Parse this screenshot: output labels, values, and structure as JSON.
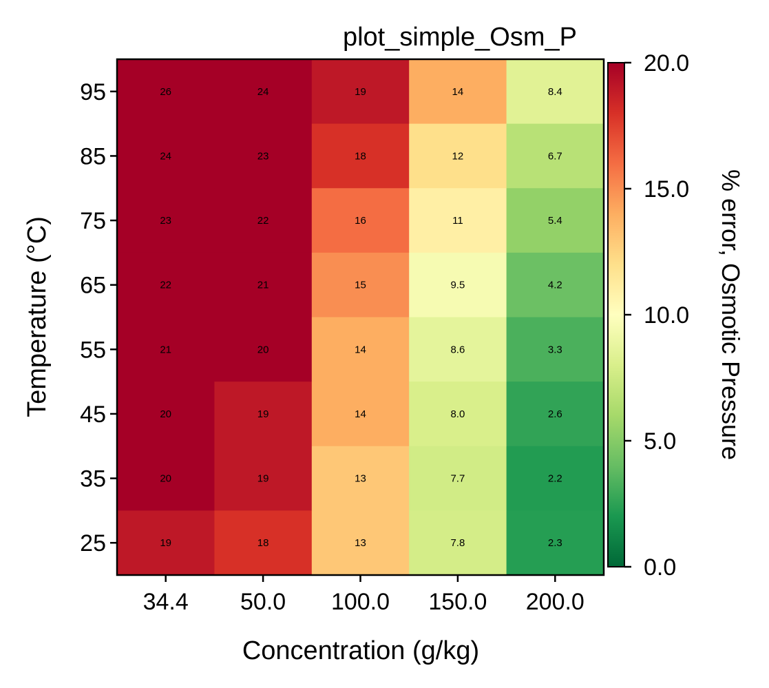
{
  "chart_data": {
    "type": "heatmap",
    "title": "plot_simple_Osm_P",
    "xlabel": "Concentration (g/kg)",
    "ylabel": "Temperature (°C)",
    "x_categories": [
      "34.4",
      "50.0",
      "100.0",
      "150.0",
      "200.0"
    ],
    "y_categories": [
      "95",
      "85",
      "75",
      "65",
      "55",
      "45",
      "35",
      "25"
    ],
    "values": [
      [
        26,
        24,
        19,
        14,
        8.4
      ],
      [
        24,
        23,
        18,
        12,
        6.7
      ],
      [
        23,
        22,
        16,
        11,
        5.4
      ],
      [
        22,
        21,
        15,
        9.5,
        4.2
      ],
      [
        21,
        20,
        14,
        8.6,
        3.3
      ],
      [
        20,
        19,
        14,
        8.0,
        2.6
      ],
      [
        20,
        19,
        13,
        7.7,
        2.2
      ],
      [
        19,
        18,
        13,
        7.8,
        2.3
      ]
    ],
    "value_labels": [
      [
        "26",
        "24",
        "19",
        "14",
        "8.4"
      ],
      [
        "24",
        "23",
        "18",
        "12",
        "6.7"
      ],
      [
        "23",
        "22",
        "16",
        "11",
        "5.4"
      ],
      [
        "22",
        "21",
        "15",
        "9.5",
        "4.2"
      ],
      [
        "21",
        "20",
        "14",
        "8.6",
        "3.3"
      ],
      [
        "20",
        "19",
        "14",
        "8.0",
        "2.6"
      ],
      [
        "20",
        "19",
        "13",
        "7.7",
        "2.2"
      ],
      [
        "19",
        "18",
        "13",
        "7.8",
        "2.3"
      ]
    ],
    "colormap": "RdYlGn_r",
    "color_range": [
      0.0,
      20.0
    ],
    "colorbar": {
      "label": "% error, Osmotic Pressure",
      "ticks": [
        0.0,
        5.0,
        10.0,
        15.0,
        20.0
      ],
      "tick_labels": [
        "0.0",
        "5.0",
        "10.0",
        "15.0",
        "20.0"
      ]
    },
    "legend": "colorbar-right",
    "grid": false
  }
}
